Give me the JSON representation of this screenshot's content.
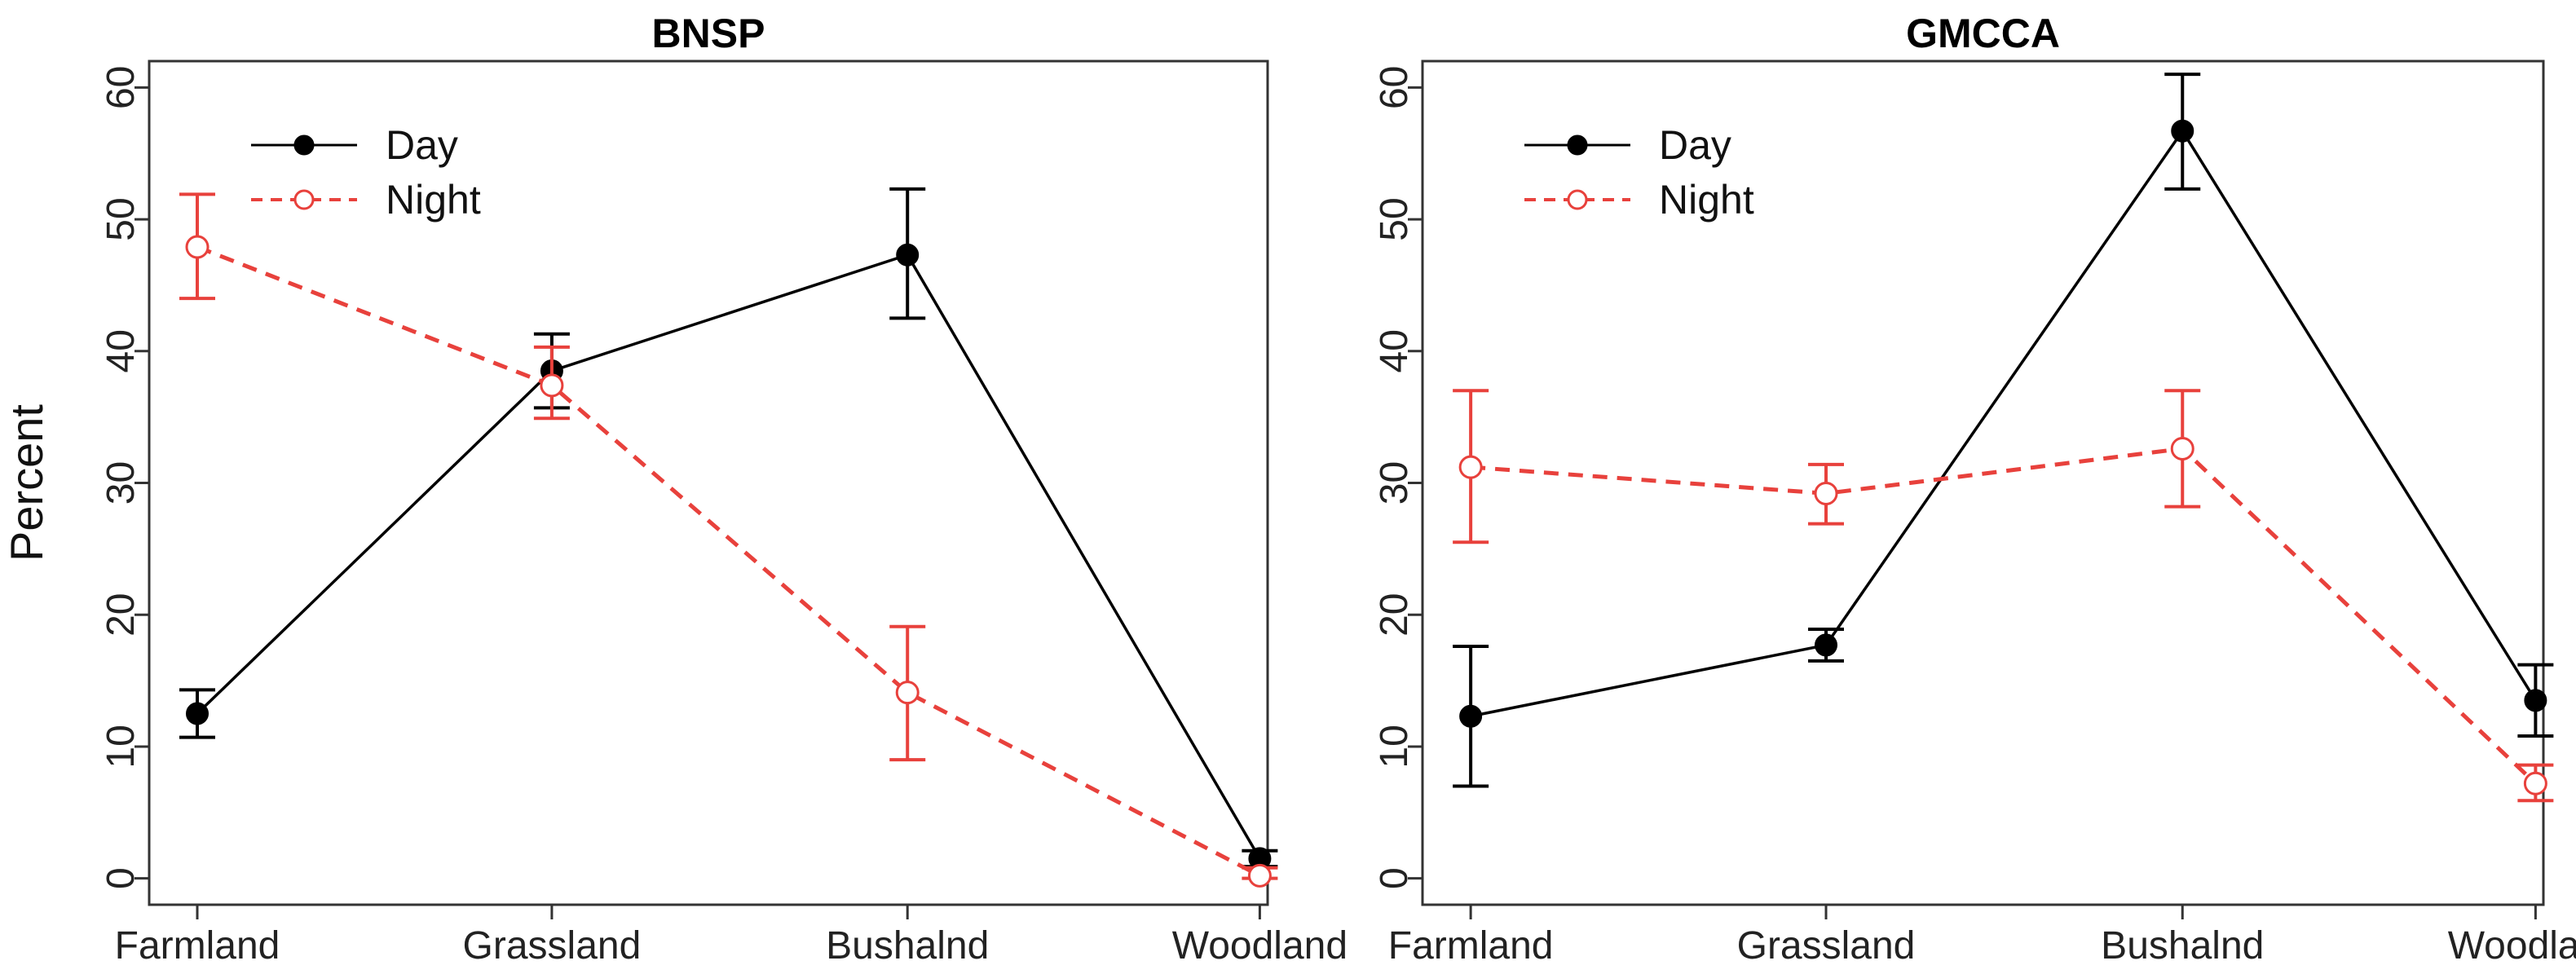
{
  "chart_data": [
    {
      "type": "line",
      "title": "BNSP",
      "ylabel": "Percent",
      "xlabel": "",
      "categories": [
        "Farmland",
        "Grassland",
        "Bushalnd",
        "Woodland"
      ],
      "ylim": [
        -2,
        62
      ],
      "yticks": [
        0,
        10,
        20,
        30,
        40,
        50,
        60
      ],
      "legend_position": "top-left",
      "series": [
        {
          "name": "Day",
          "color": "#000000",
          "style": "solid",
          "marker": "filled-circle",
          "values": [
            12.5,
            38.5,
            47.3,
            1.5
          ],
          "lower": [
            10.7,
            35.7,
            42.5,
            0.9
          ],
          "upper": [
            14.3,
            41.3,
            52.3,
            2.1
          ]
        },
        {
          "name": "Night",
          "color": "#e8413c",
          "style": "dashed",
          "marker": "open-circle",
          "values": [
            47.9,
            37.4,
            14.1,
            0.2
          ],
          "lower": [
            44.0,
            34.9,
            9.0,
            0.0
          ],
          "upper": [
            51.9,
            40.3,
            19.1,
            0.8
          ]
        }
      ]
    },
    {
      "type": "line",
      "title": "GMCCA",
      "ylabel": "",
      "xlabel": "",
      "categories": [
        "Farmland",
        "Grassland",
        "Bushalnd",
        "Woodland"
      ],
      "ylim": [
        -2,
        62
      ],
      "yticks": [
        0,
        10,
        20,
        30,
        40,
        50,
        60
      ],
      "legend_position": "top-left",
      "series": [
        {
          "name": "Day",
          "color": "#000000",
          "style": "solid",
          "marker": "filled-circle",
          "values": [
            12.3,
            17.7,
            56.7,
            13.5
          ],
          "lower": [
            7.0,
            16.5,
            52.3,
            10.8
          ],
          "upper": [
            17.6,
            18.9,
            61.0,
            16.2
          ]
        },
        {
          "name": "Night",
          "color": "#e8413c",
          "style": "dashed",
          "marker": "open-circle",
          "values": [
            31.2,
            29.2,
            32.6,
            7.2
          ],
          "lower": [
            25.5,
            26.9,
            28.2,
            5.9
          ],
          "upper": [
            37.0,
            31.4,
            37.0,
            8.6
          ]
        }
      ]
    }
  ]
}
